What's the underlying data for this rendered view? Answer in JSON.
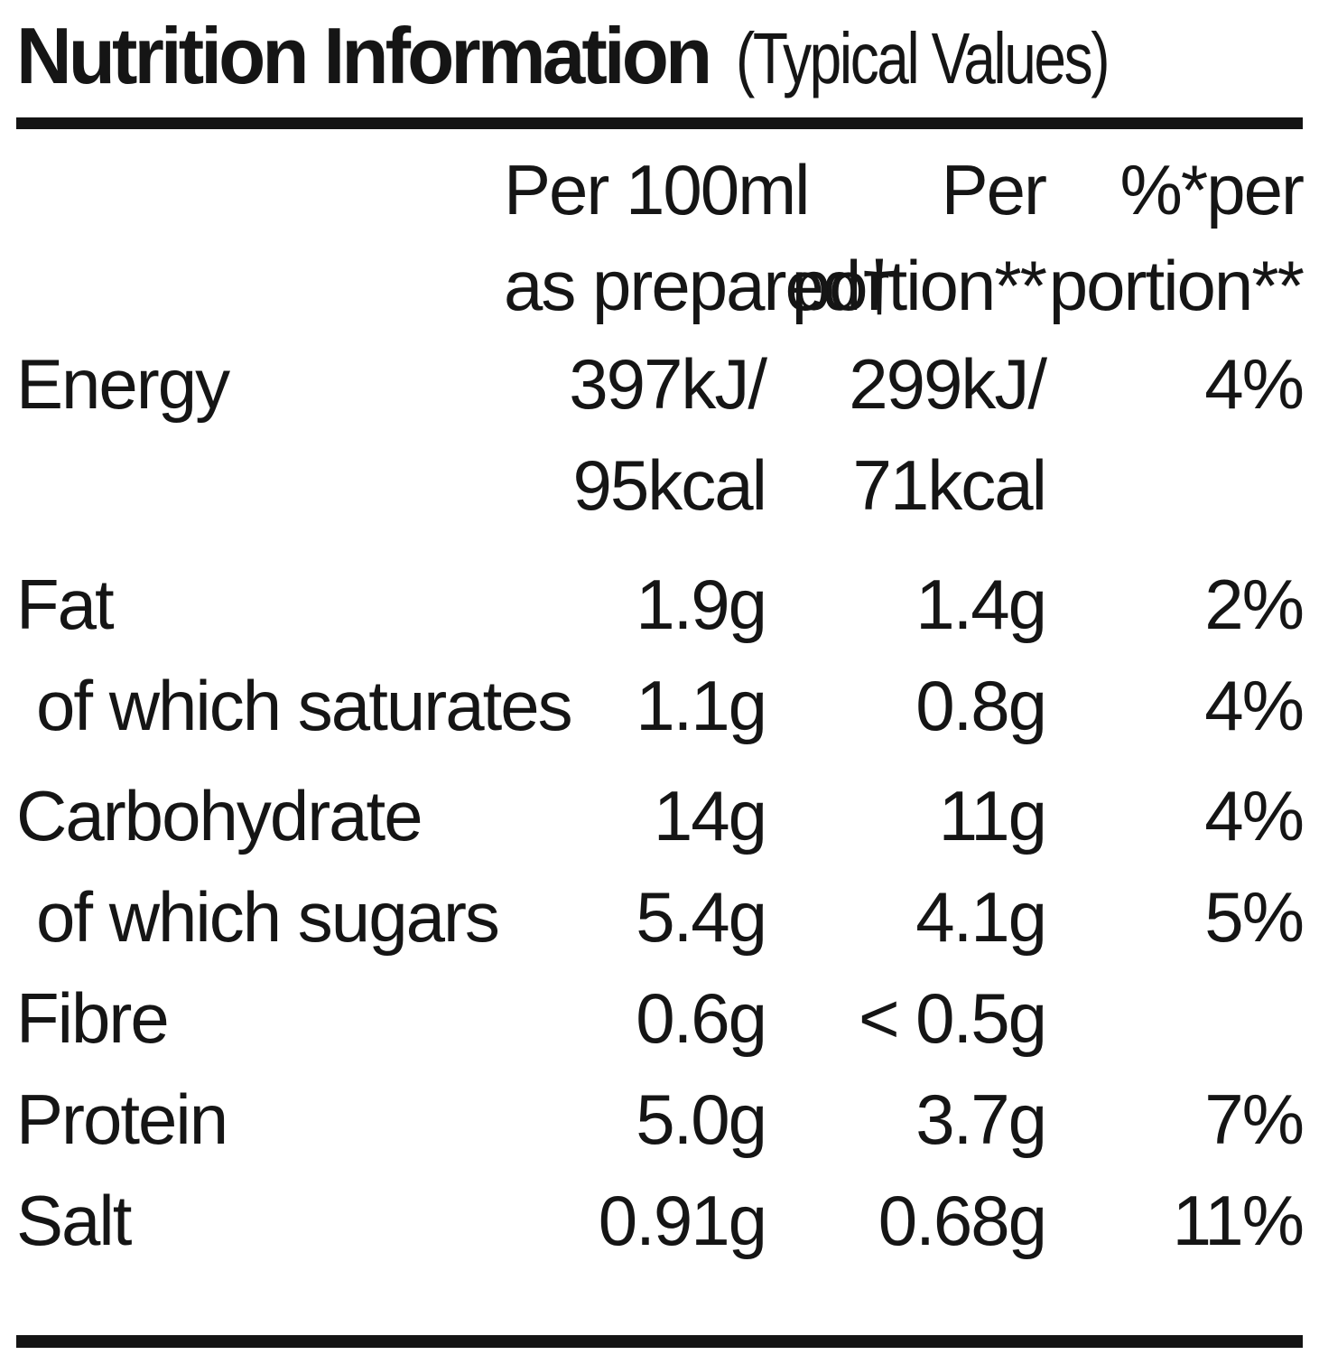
{
  "title": {
    "main": "Nutrition Information",
    "suffix": "(Typical Values)"
  },
  "table": {
    "col_headers": [
      {
        "line1": "Per 100ml",
        "line2": "as prepared†"
      },
      {
        "line1": "Per",
        "line2": "portion**"
      },
      {
        "line1": "%*per",
        "line2": "portion**"
      }
    ],
    "rows": [
      {
        "label": "Energy",
        "per100_line1": "397kJ/",
        "per100_line2": "95kcal",
        "portion_line1": "299kJ/",
        "portion_line2": "71kcal",
        "percent": "4%"
      },
      {
        "label": "Fat",
        "per100": "1.9g",
        "portion": "1.4g",
        "percent": "2%"
      },
      {
        "label": "of which saturates",
        "per100": "1.1g",
        "portion": "0.8g",
        "percent": "4%"
      },
      {
        "label": "Carbohydrate",
        "per100": "14g",
        "portion": "11g",
        "percent": "4%"
      },
      {
        "label": "of which sugars",
        "per100": "5.4g",
        "portion": "4.1g",
        "percent": "5%"
      },
      {
        "label": "Fibre",
        "per100": "0.6g",
        "portion": "< 0.5g",
        "percent": ""
      },
      {
        "label": "Protein",
        "per100": "5.0g",
        "portion": "3.7g",
        "percent": "7%"
      },
      {
        "label": "Salt",
        "per100": "0.91g",
        "portion": "0.68g",
        "percent": "11%"
      }
    ]
  }
}
